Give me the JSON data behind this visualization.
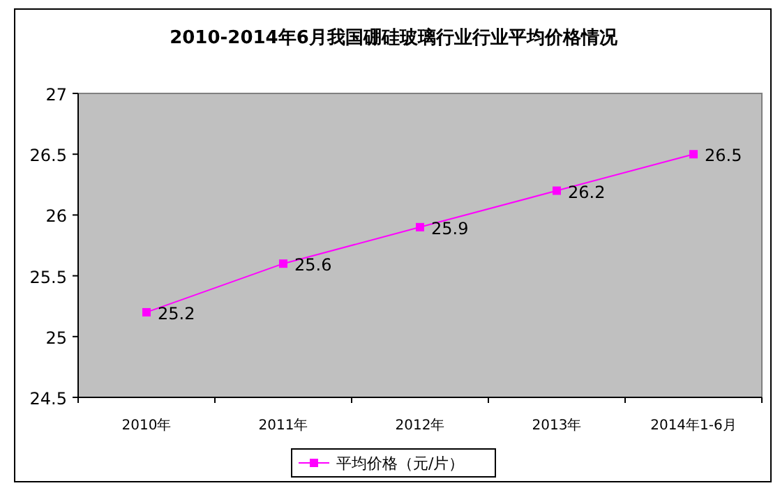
{
  "chart_data": {
    "type": "line",
    "title": "2010-2014年6月我国硼硅玻璃行业行业平均价格情况",
    "categories": [
      "2010年",
      "2011年",
      "2012年",
      "2013年",
      "2014年1-6月"
    ],
    "series": [
      {
        "name": "平均价格（元/片）",
        "color": "#ff00ff",
        "values": [
          25.2,
          25.6,
          25.9,
          26.2,
          26.5
        ]
      }
    ],
    "ylim": [
      24.5,
      27
    ],
    "yticks": [
      24.5,
      25,
      25.5,
      26,
      26.5,
      27
    ],
    "data_labels": true,
    "legend": "bottom",
    "marker": "square",
    "line_style": "solid",
    "grid": false
  }
}
